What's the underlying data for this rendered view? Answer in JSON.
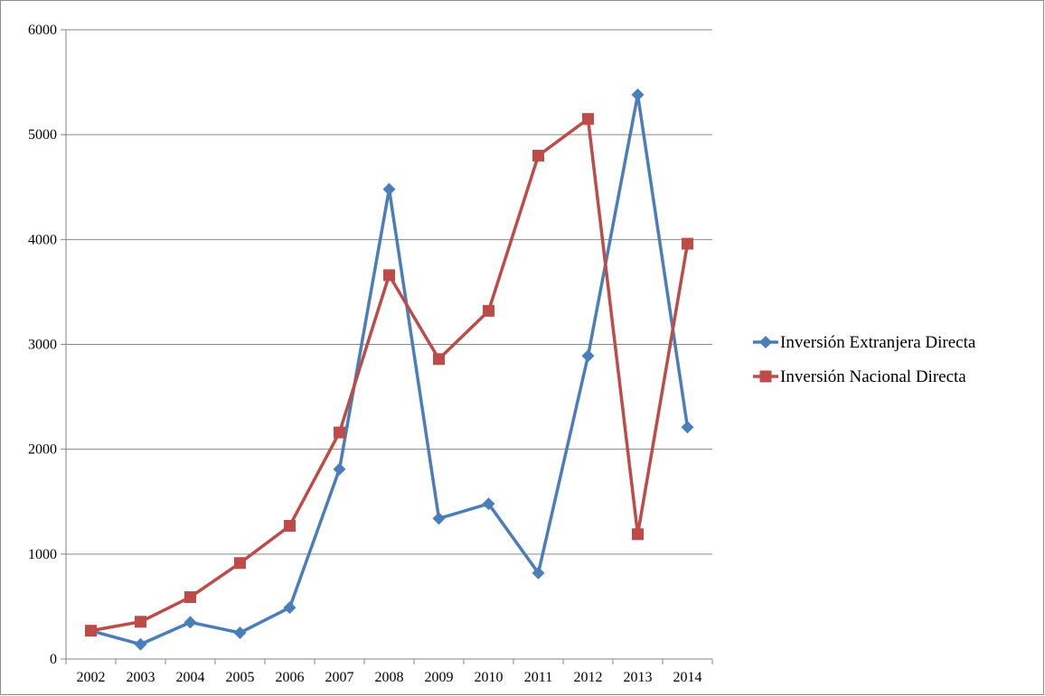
{
  "chart_data": {
    "type": "line",
    "title": "",
    "xlabel": "",
    "ylabel": "",
    "categories": [
      "2002",
      "2003",
      "2004",
      "2005",
      "2006",
      "2007",
      "2008",
      "2009",
      "2010",
      "2011",
      "2012",
      "2013",
      "2014"
    ],
    "ylim": [
      0,
      6000
    ],
    "yticks": [
      "0",
      "1000",
      "2000",
      "3000",
      "4000",
      "5000",
      "6000"
    ],
    "grid": "horizontal",
    "legend_position": "right",
    "series": [
      {
        "name": "Inversión Extranjera Directa",
        "color": "#4a7ebb",
        "marker": "diamond",
        "values": [
          270,
          140,
          350,
          250,
          490,
          1810,
          4480,
          1340,
          1480,
          820,
          2890,
          5380,
          2210
        ]
      },
      {
        "name": "Inversión Nacional Directa",
        "color": "#be4b48",
        "marker": "square",
        "values": [
          270,
          355,
          590,
          915,
          1270,
          2160,
          3660,
          2860,
          3320,
          4800,
          5150,
          1190,
          3960
        ]
      }
    ]
  }
}
